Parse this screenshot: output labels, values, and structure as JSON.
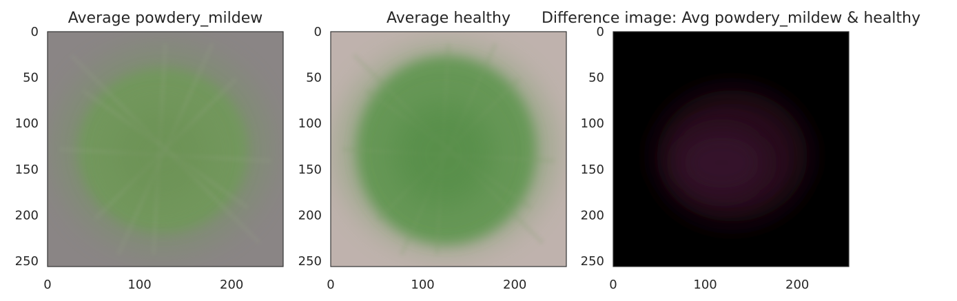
{
  "figure": {
    "background": "#ffffff",
    "text_color": "#262626",
    "frame_color": "#333333"
  },
  "chart_data": [
    {
      "type": "image",
      "title": "Average powdery_mildew",
      "xlim": [
        0,
        256
      ],
      "ylim": [
        256,
        0
      ],
      "xticks": [
        0,
        100,
        200
      ],
      "yticks": [
        0,
        50,
        100,
        150,
        200,
        250
      ],
      "grid": false,
      "background_color": "#8a8585",
      "blob_color": "#6f9a58",
      "image": "green leaf blob centered on a mauve-gray background"
    },
    {
      "type": "image",
      "title": "Average healthy",
      "xlim": [
        0,
        256
      ],
      "ylim": [
        256,
        0
      ],
      "xticks": [
        0,
        100,
        200
      ],
      "yticks": [
        0,
        50,
        100,
        150,
        200,
        250
      ],
      "grid": false,
      "background_color": "#bfb2ad",
      "blob_color": "#5d954d",
      "image": "green leaf blob centered on a light pinkish-gray background"
    },
    {
      "type": "image",
      "title": "Difference image: Avg powdery_mildew & healthy",
      "xlim": [
        0,
        256
      ],
      "ylim": [
        256,
        0
      ],
      "xticks": [
        0,
        100,
        200
      ],
      "yticks": [
        0,
        50,
        100,
        150,
        200,
        250
      ],
      "grid": false,
      "background_color": "#000000",
      "blob_color": "#2a0f1f",
      "image": "nearly black with faint purplish blob in center"
    }
  ]
}
